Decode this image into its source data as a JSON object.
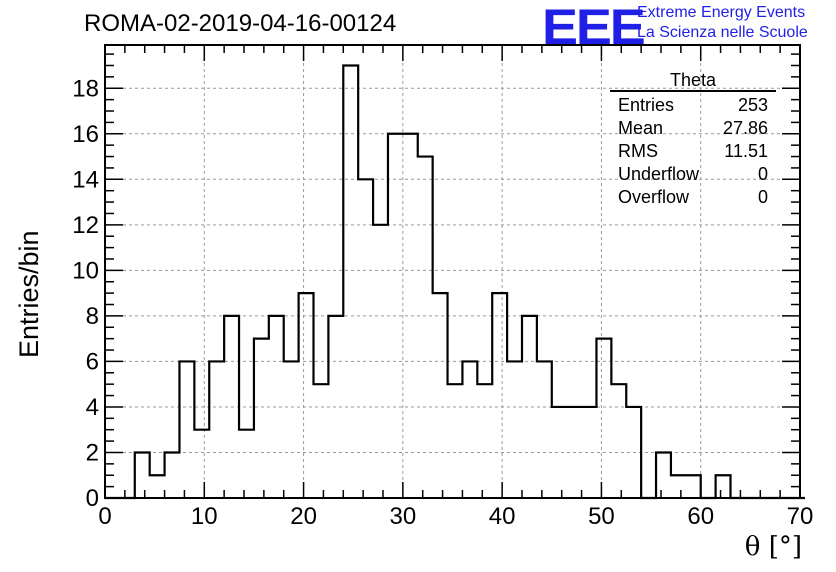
{
  "header": {
    "run_title": "ROMA-02-2019-04-16-00124",
    "logo_text": "EEE",
    "logo_line1": "Extreme Energy Events",
    "logo_line2": "La Scienza nelle Scuole",
    "logo_color": "#1f1fe6"
  },
  "stats_box": {
    "title": "Theta",
    "rows": [
      {
        "label": "Entries",
        "value": "253"
      },
      {
        "label": "Mean",
        "value": "27.86"
      },
      {
        "label": "RMS",
        "value": "11.51"
      },
      {
        "label": "Underflow",
        "value": "0"
      },
      {
        "label": "Overflow",
        "value": "0"
      }
    ]
  },
  "chart_data": {
    "type": "bar",
    "style": "step-histogram",
    "xlabel": "θ [°]",
    "ylabel": "Entries/bin",
    "xlim": [
      0,
      70
    ],
    "ylim": [
      0,
      19.9
    ],
    "bin_width": 1.5,
    "x_ticks": [
      0,
      10,
      20,
      30,
      40,
      50,
      60,
      70
    ],
    "y_ticks": [
      0,
      2,
      4,
      6,
      8,
      10,
      12,
      14,
      16,
      18
    ],
    "grid": true,
    "bins": [
      {
        "x": 0.0,
        "value": 0
      },
      {
        "x": 1.5,
        "value": 0
      },
      {
        "x": 3.0,
        "value": 2
      },
      {
        "x": 4.5,
        "value": 1
      },
      {
        "x": 6.0,
        "value": 2
      },
      {
        "x": 7.5,
        "value": 6
      },
      {
        "x": 9.0,
        "value": 3
      },
      {
        "x": 10.5,
        "value": 6
      },
      {
        "x": 12.0,
        "value": 8
      },
      {
        "x": 13.5,
        "value": 3
      },
      {
        "x": 15.0,
        "value": 7
      },
      {
        "x": 16.5,
        "value": 8
      },
      {
        "x": 18.0,
        "value": 6
      },
      {
        "x": 19.5,
        "value": 9
      },
      {
        "x": 21.0,
        "value": 5
      },
      {
        "x": 22.5,
        "value": 8
      },
      {
        "x": 24.0,
        "value": 19
      },
      {
        "x": 25.5,
        "value": 14
      },
      {
        "x": 27.0,
        "value": 12
      },
      {
        "x": 28.5,
        "value": 16
      },
      {
        "x": 30.0,
        "value": 16
      },
      {
        "x": 31.5,
        "value": 15
      },
      {
        "x": 33.0,
        "value": 9
      },
      {
        "x": 34.5,
        "value": 5
      },
      {
        "x": 36.0,
        "value": 6
      },
      {
        "x": 37.5,
        "value": 5
      },
      {
        "x": 39.0,
        "value": 9
      },
      {
        "x": 40.5,
        "value": 6
      },
      {
        "x": 42.0,
        "value": 8
      },
      {
        "x": 43.5,
        "value": 6
      },
      {
        "x": 45.0,
        "value": 4
      },
      {
        "x": 46.5,
        "value": 4
      },
      {
        "x": 48.0,
        "value": 4
      },
      {
        "x": 49.5,
        "value": 7
      },
      {
        "x": 51.0,
        "value": 5
      },
      {
        "x": 52.5,
        "value": 4
      },
      {
        "x": 54.0,
        "value": 0
      },
      {
        "x": 55.5,
        "value": 2
      },
      {
        "x": 57.0,
        "value": 1
      },
      {
        "x": 58.5,
        "value": 1
      },
      {
        "x": 60.0,
        "value": 0
      },
      {
        "x": 61.5,
        "value": 1
      },
      {
        "x": 63.0,
        "value": 0
      },
      {
        "x": 64.5,
        "value": 0
      },
      {
        "x": 66.0,
        "value": 0
      },
      {
        "x": 67.5,
        "value": 0
      },
      {
        "x": 69.0,
        "value": 0
      }
    ]
  }
}
